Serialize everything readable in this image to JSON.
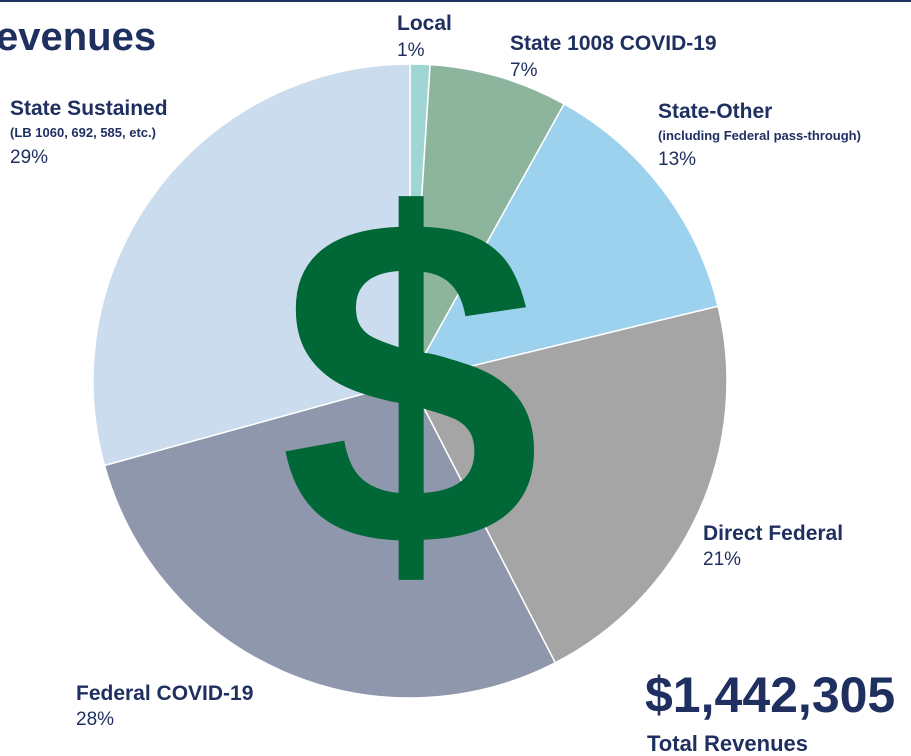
{
  "chart_data": {
    "type": "pie",
    "title": "evenues",
    "categories": [
      "Local",
      "State 1008 COVID-19",
      "State-Other",
      "Direct Federal",
      "Federal COVID-19",
      "State Sustained"
    ],
    "sublabels": [
      null,
      null,
      "(including Federal pass-through)",
      null,
      null,
      "(LB 1060, 692, 585, etc.)"
    ],
    "values": [
      1,
      7,
      13,
      21,
      28,
      29
    ],
    "value_labels": [
      "1%",
      "7%",
      "13%",
      "21%",
      "28%",
      "29%"
    ],
    "colors": [
      "#9fd6d4",
      "#8db59d",
      "#9dd2ee",
      "#a5a5a5",
      "#8e97ab",
      "#cbdcee"
    ],
    "symbol": "$",
    "total": "$1,442,305",
    "total_label": "Total Revenues"
  }
}
